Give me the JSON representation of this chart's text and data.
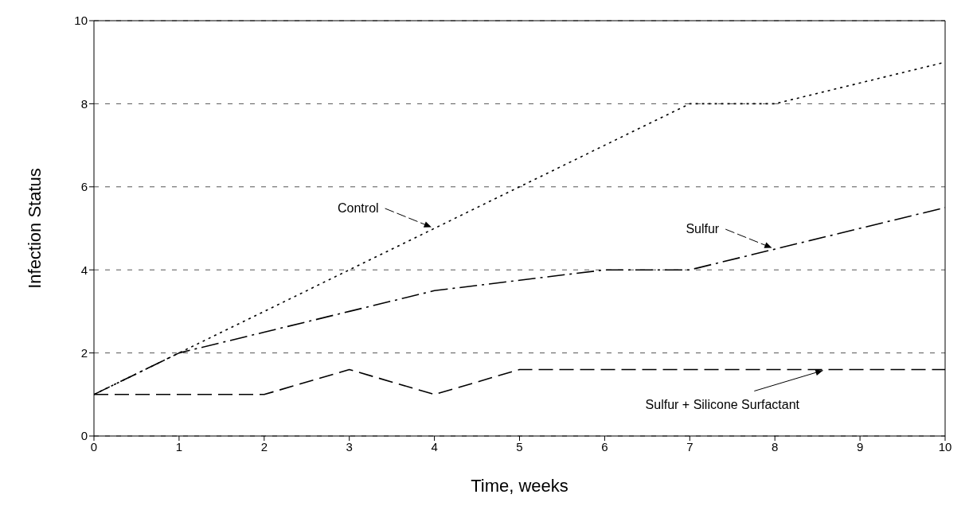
{
  "chart_data": {
    "type": "line",
    "xlabel": "Time, weeks",
    "ylabel": "Infection Status",
    "x": [
      0,
      1,
      2,
      3,
      4,
      5,
      6,
      7,
      8,
      9,
      10
    ],
    "series": [
      {
        "color": "#000000",
        "line_style": "dotted",
        "values": [
          1,
          2,
          3,
          4,
          5,
          6,
          7,
          8,
          8,
          8.5,
          9
        ]
      },
      {
        "color": "#000000",
        "line_style": "dashed",
        "values": [
          1,
          2,
          2.5,
          3,
          3.5,
          3.75,
          4,
          4,
          4.5,
          5,
          5.5
        ]
      },
      {
        "color": "#000000",
        "line_style": "dashed",
        "values": [
          1,
          1,
          1,
          1.6,
          1,
          1.6,
          1.6,
          1.6,
          1.6,
          1.6,
          1.6
        ]
      }
    ],
    "annotations": [
      {
        "text": "Control",
        "x": 4,
        "y": 5
      },
      {
        "text": "Sulfur",
        "x": 8,
        "y": 4.5
      },
      {
        "text": "Sulfur + Silicone Surfactant",
        "x": 8.6,
        "y": 1.6
      }
    ],
    "xlim": [
      0,
      10
    ],
    "xticks": [
      0,
      1,
      2,
      3,
      4,
      5,
      6,
      7,
      8,
      9,
      10
    ],
    "ylim": [
      0,
      10
    ],
    "yticks": [
      0,
      2,
      4,
      6,
      8,
      10
    ],
    "grid": "y",
    "marker": "none"
  }
}
